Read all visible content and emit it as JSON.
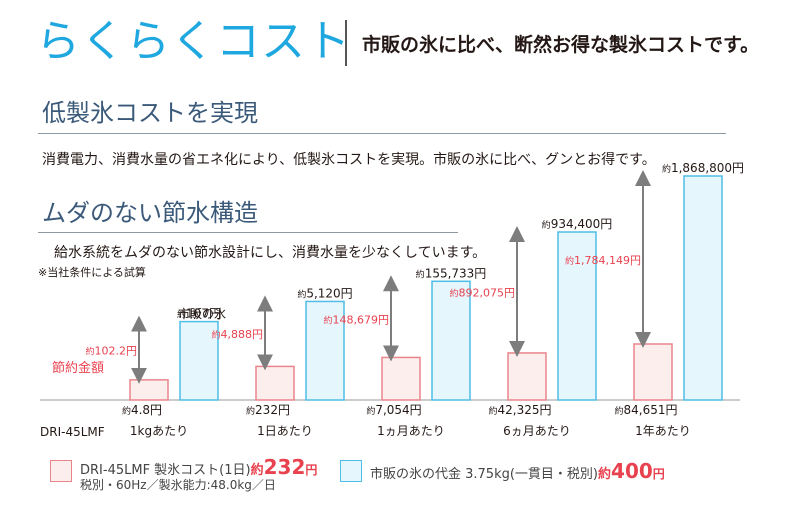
{
  "header": {
    "title": "らくらくコスト",
    "tagline": "市販の氷に比べ、断然お得な製氷コストです。"
  },
  "section1": {
    "heading": "低製氷コストを実現",
    "text": "消費電力、消費水量の省エネ化により、低製氷コストを実現。市販の氷に比べ、グンとお得です。"
  },
  "section2": {
    "heading": "ムダのない節水構造",
    "text": "給水系統をムダのない節水設計にし、消費水量を少なくしています。",
    "note": "※当社条件による試算"
  },
  "chart_labels": {
    "series_store_a": "市販の氷",
    "savings_label": "節約金額",
    "model": "DRI-45LMF",
    "approx_prefix": "約"
  },
  "chart_data": {
    "type": "bar",
    "categories": [
      "1kgあたり",
      "1日あたり",
      "1ヵ月あたり",
      "6ヵ月あたり",
      "1年あたり"
    ],
    "series": [
      {
        "name": "DRI-45LMF",
        "values": [
          4.8,
          232,
          7054,
          42325,
          84651
        ],
        "labels": [
          "4.8円",
          "232円",
          "7,054円",
          "42,325円",
          "84,651円"
        ]
      },
      {
        "name": "市販の氷",
        "values": [
          107,
          5120,
          155733,
          934400,
          1868800
        ],
        "labels": [
          "107円",
          "5,120円",
          "155,733円",
          "934,400円",
          "1,868,800円"
        ]
      }
    ],
    "savings": [
      102.2,
      4888,
      148679,
      892075,
      1784149
    ],
    "savings_labels": [
      "102.2円",
      "4,888円",
      "148,679円",
      "892,075円",
      "1,784,149円"
    ],
    "note": "bar heights are illustrative (not to scale)",
    "bar_fraction": {
      "own": [
        0.09,
        0.15,
        0.19,
        0.21,
        0.25
      ],
      "store": [
        0.35,
        0.44,
        0.53,
        0.75,
        1.0
      ]
    },
    "colors": {
      "own_fill": "#fdeeee",
      "own_stroke": "#e9858b",
      "store_fill": "#e6f6fd",
      "store_stroke": "#4fbde6",
      "savings_text": "#e8424f",
      "arrow": "#7d7d7d"
    }
  },
  "legend": {
    "own_line1_prefix": "DRI-45LMF 製氷コスト(1日)",
    "own_line1_approx": "約",
    "own_line1_value": "232",
    "own_line1_unit": "円",
    "own_line2": "税別・60Hz／製氷能力:48.0kg／日",
    "store_prefix": "市販の氷の代金 3.75kg(一貫目・税別)",
    "store_approx": "約",
    "store_value": "400",
    "store_unit": "円"
  }
}
